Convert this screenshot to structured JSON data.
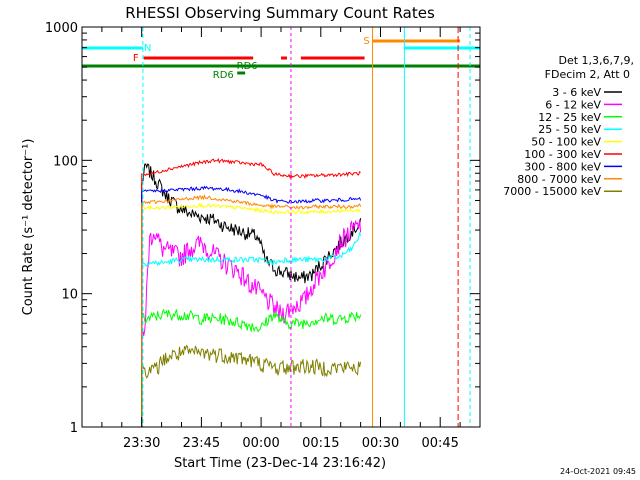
{
  "chart_data": {
    "type": "line",
    "title": "RHESSI Observing Summary Count Rates",
    "xlabel": "Start Time (23-Dec-14 23:16:42)",
    "ylabel": "Count Rate (s⁻¹ detector⁻¹)",
    "yscale": "log",
    "ylim": [
      1,
      1000
    ],
    "xlim_minutes": [
      -15,
      85
    ],
    "y_ticks": [
      "1",
      "10",
      "100",
      "1000"
    ],
    "x_ticks": [
      {
        "label": "23:30",
        "minutes": 0
      },
      {
        "label": "23:45",
        "minutes": 15
      },
      {
        "label": "00:00",
        "minutes": 30
      },
      {
        "label": "00:15",
        "minutes": 45
      },
      {
        "label": "00:30",
        "minutes": 60
      },
      {
        "label": "00:45",
        "minutes": 75
      }
    ],
    "legend_header": [
      "Det 1,3,6,7,9,",
      "FDecim 2, Att 0"
    ],
    "footer_date": "24-Oct-2021 09:45",
    "series": [
      {
        "name": "3 - 6 keV",
        "color": "#000000",
        "points": [
          [
            0,
            65
          ],
          [
            1,
            90
          ],
          [
            3,
            75
          ],
          [
            6,
            55
          ],
          [
            9,
            45
          ],
          [
            12,
            40
          ],
          [
            15,
            38
          ],
          [
            18,
            36
          ],
          [
            21,
            32
          ],
          [
            24,
            30
          ],
          [
            27,
            28
          ],
          [
            29,
            27
          ],
          [
            31,
            18
          ],
          [
            34,
            15
          ],
          [
            37,
            14
          ],
          [
            40,
            13
          ],
          [
            43,
            14
          ],
          [
            46,
            18
          ],
          [
            49,
            22
          ],
          [
            52,
            28
          ],
          [
            54,
            32
          ],
          [
            55,
            33
          ]
        ]
      },
      {
        "name": "6 - 12 keV",
        "color": "#ff00ff",
        "points": [
          [
            0,
            5
          ],
          [
            1,
            6
          ],
          [
            2,
            25
          ],
          [
            3,
            30
          ],
          [
            5,
            22
          ],
          [
            8,
            20
          ],
          [
            10,
            19
          ],
          [
            12,
            22
          ],
          [
            15,
            24
          ],
          [
            18,
            20
          ],
          [
            21,
            17
          ],
          [
            24,
            15
          ],
          [
            27,
            12
          ],
          [
            30,
            10
          ],
          [
            33,
            8
          ],
          [
            35,
            7
          ],
          [
            38,
            8
          ],
          [
            41,
            9
          ],
          [
            44,
            13
          ],
          [
            47,
            17
          ],
          [
            50,
            25
          ],
          [
            53,
            30
          ],
          [
            55,
            33
          ]
        ]
      },
      {
        "name": "12 - 25 keV",
        "color": "#00ff00",
        "points": [
          [
            0,
            6.5
          ],
          [
            2,
            6.5
          ],
          [
            5,
            7
          ],
          [
            10,
            7
          ],
          [
            15,
            6.5
          ],
          [
            20,
            6.5
          ],
          [
            25,
            6
          ],
          [
            30,
            5.5
          ],
          [
            33,
            7
          ],
          [
            36,
            6
          ],
          [
            40,
            6
          ],
          [
            45,
            6.5
          ],
          [
            50,
            6.5
          ],
          [
            55,
            7
          ]
        ]
      },
      {
        "name": "25 - 50 keV",
        "color": "#00ffff",
        "points": [
          [
            0,
            17
          ],
          [
            5,
            17
          ],
          [
            10,
            18
          ],
          [
            15,
            18
          ],
          [
            20,
            18
          ],
          [
            25,
            18
          ],
          [
            30,
            18
          ],
          [
            33,
            17
          ],
          [
            36,
            18
          ],
          [
            40,
            18
          ],
          [
            45,
            18
          ],
          [
            50,
            19
          ],
          [
            53,
            22
          ],
          [
            55,
            28
          ]
        ]
      },
      {
        "name": "50 - 100 keV",
        "color": "#ffff00",
        "points": [
          [
            0,
            44
          ],
          [
            5,
            44
          ],
          [
            10,
            45
          ],
          [
            15,
            46
          ],
          [
            20,
            45
          ],
          [
            25,
            44
          ],
          [
            30,
            42
          ],
          [
            33,
            41
          ],
          [
            36,
            41
          ],
          [
            40,
            41
          ],
          [
            45,
            41
          ],
          [
            50,
            42
          ],
          [
            55,
            42
          ]
        ]
      },
      {
        "name": "100 - 300 keV",
        "color": "#ff0000",
        "points": [
          [
            0,
            78
          ],
          [
            3,
            80
          ],
          [
            6,
            85
          ],
          [
            10,
            90
          ],
          [
            14,
            95
          ],
          [
            18,
            100
          ],
          [
            22,
            98
          ],
          [
            26,
            95
          ],
          [
            30,
            93
          ],
          [
            33,
            80
          ],
          [
            34,
            78
          ],
          [
            36,
            77
          ],
          [
            40,
            76
          ],
          [
            44,
            77
          ],
          [
            48,
            78
          ],
          [
            52,
            79
          ],
          [
            55,
            80
          ]
        ]
      },
      {
        "name": "300 - 800 keV",
        "color": "#0000ff",
        "points": [
          [
            0,
            58
          ],
          [
            4,
            59
          ],
          [
            8,
            60
          ],
          [
            12,
            61
          ],
          [
            16,
            62
          ],
          [
            20,
            61
          ],
          [
            24,
            59
          ],
          [
            28,
            56
          ],
          [
            30,
            55
          ],
          [
            33,
            50
          ],
          [
            36,
            49
          ],
          [
            40,
            49
          ],
          [
            44,
            50
          ],
          [
            48,
            50
          ],
          [
            52,
            51
          ],
          [
            55,
            51
          ]
        ]
      },
      {
        "name": "800 - 7000 keV",
        "color": "#ff8800",
        "points": [
          [
            0,
            48
          ],
          [
            4,
            49
          ],
          [
            8,
            50
          ],
          [
            12,
            52
          ],
          [
            16,
            53
          ],
          [
            20,
            51
          ],
          [
            24,
            49
          ],
          [
            28,
            47
          ],
          [
            30,
            46
          ],
          [
            33,
            45
          ],
          [
            36,
            45
          ],
          [
            40,
            44
          ],
          [
            44,
            45
          ],
          [
            48,
            45
          ],
          [
            52,
            45
          ],
          [
            55,
            46
          ]
        ]
      },
      {
        "name": "7000 - 15000 keV",
        "color": "#808000",
        "points": [
          [
            0,
            2.8
          ],
          [
            3,
            2.6
          ],
          [
            6,
            3.3
          ],
          [
            10,
            3.6
          ],
          [
            15,
            3.6
          ],
          [
            20,
            3.5
          ],
          [
            25,
            3.3
          ],
          [
            30,
            3.0
          ],
          [
            33,
            2.8
          ],
          [
            37,
            2.8
          ],
          [
            40,
            2.9
          ],
          [
            45,
            2.8
          ],
          [
            50,
            2.8
          ],
          [
            55,
            2.8
          ]
        ]
      }
    ],
    "annotations": [
      {
        "label": "N",
        "color": "#00ffff"
      },
      {
        "label": "F",
        "color": "#ff0000"
      },
      {
        "label": "RD6",
        "color": "#008000"
      },
      {
        "label": "RD6",
        "color": "#008000"
      },
      {
        "label": "S",
        "color": "#ff8800"
      }
    ]
  }
}
